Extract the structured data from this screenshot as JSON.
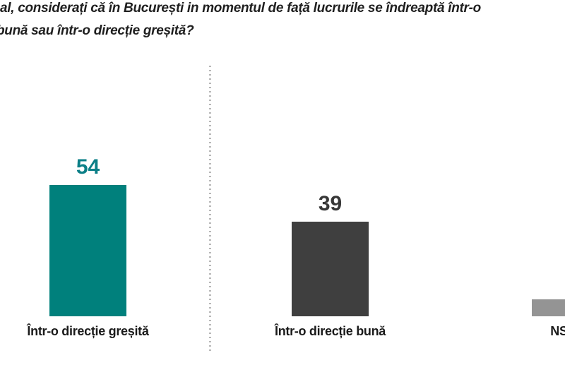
{
  "title": {
    "line1": "al, considerați că în București in momentul de față lucrurile se îndreaptă într-o",
    "line2": "bună sau într-o direcție greșită?"
  },
  "bars": [
    {
      "label": "Într-o direcție greșită",
      "value_label": "54",
      "color": "#00807C",
      "value_color": "#0B7F87"
    },
    {
      "label": "Într-o direcție bună",
      "value_label": "39",
      "color": "#3F3F3F",
      "value_color": "#383838"
    },
    {
      "label": "NS",
      "value_label": "",
      "color": "#949494",
      "value_color": "#949494"
    }
  ],
  "colors": {
    "divider": "#B8B8B8",
    "title_text": "#1F1F1F",
    "category_text": "#1A1A1A",
    "background": "#FFFFFF"
  },
  "chart_data": {
    "type": "bar",
    "title": "al, considerați că în București in momentul de față lucrurile se îndreaptă într-o bună sau într-o direcție greșită? (question partially cut off at left edge)",
    "categories": [
      "Într-o direcție greșită",
      "Într-o direcție bună",
      "NS"
    ],
    "values": [
      54,
      39,
      7
    ],
    "value_labels_visible": [
      "54",
      "39",
      ""
    ],
    "series_colors": [
      "#00807C",
      "#3F3F3F",
      "#949494"
    ],
    "xlabel": "",
    "ylabel": "",
    "ylim": [
      0,
      60
    ],
    "grid": false,
    "legend": "none",
    "notes": "third bar and its NS label are clipped by the right edge; value 7 estimated from bar height; dashed vertical divider separates first bar from the rest"
  }
}
